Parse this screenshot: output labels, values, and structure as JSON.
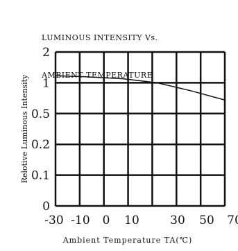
{
  "chart_data": {
    "type": "line",
    "title_lines": [
      "LUMINOUS INTENSITY Vs.",
      "AMBIENT TEMPERATURE"
    ],
    "xlabel": "Ambient Temperature TA(℃)",
    "ylabel": "Relotive Luminous Intensity",
    "x_ticks": [
      "-30",
      "-10",
      "0",
      "10",
      "30",
      "50",
      "70"
    ],
    "y_ticks": [
      "2",
      "1",
      "0.5",
      "0.2",
      "0.1",
      "0"
    ],
    "x_range": [
      -30,
      70
    ],
    "y_levels": [
      2,
      1,
      0.5,
      0.2,
      0.1,
      0
    ],
    "grid": true,
    "series": [
      {
        "x": [
          -30,
          -10,
          10,
          30,
          50,
          70
        ],
        "y": [
          1.23,
          1.19,
          1.13,
          1.0,
          0.87,
          0.72
        ]
      }
    ]
  }
}
